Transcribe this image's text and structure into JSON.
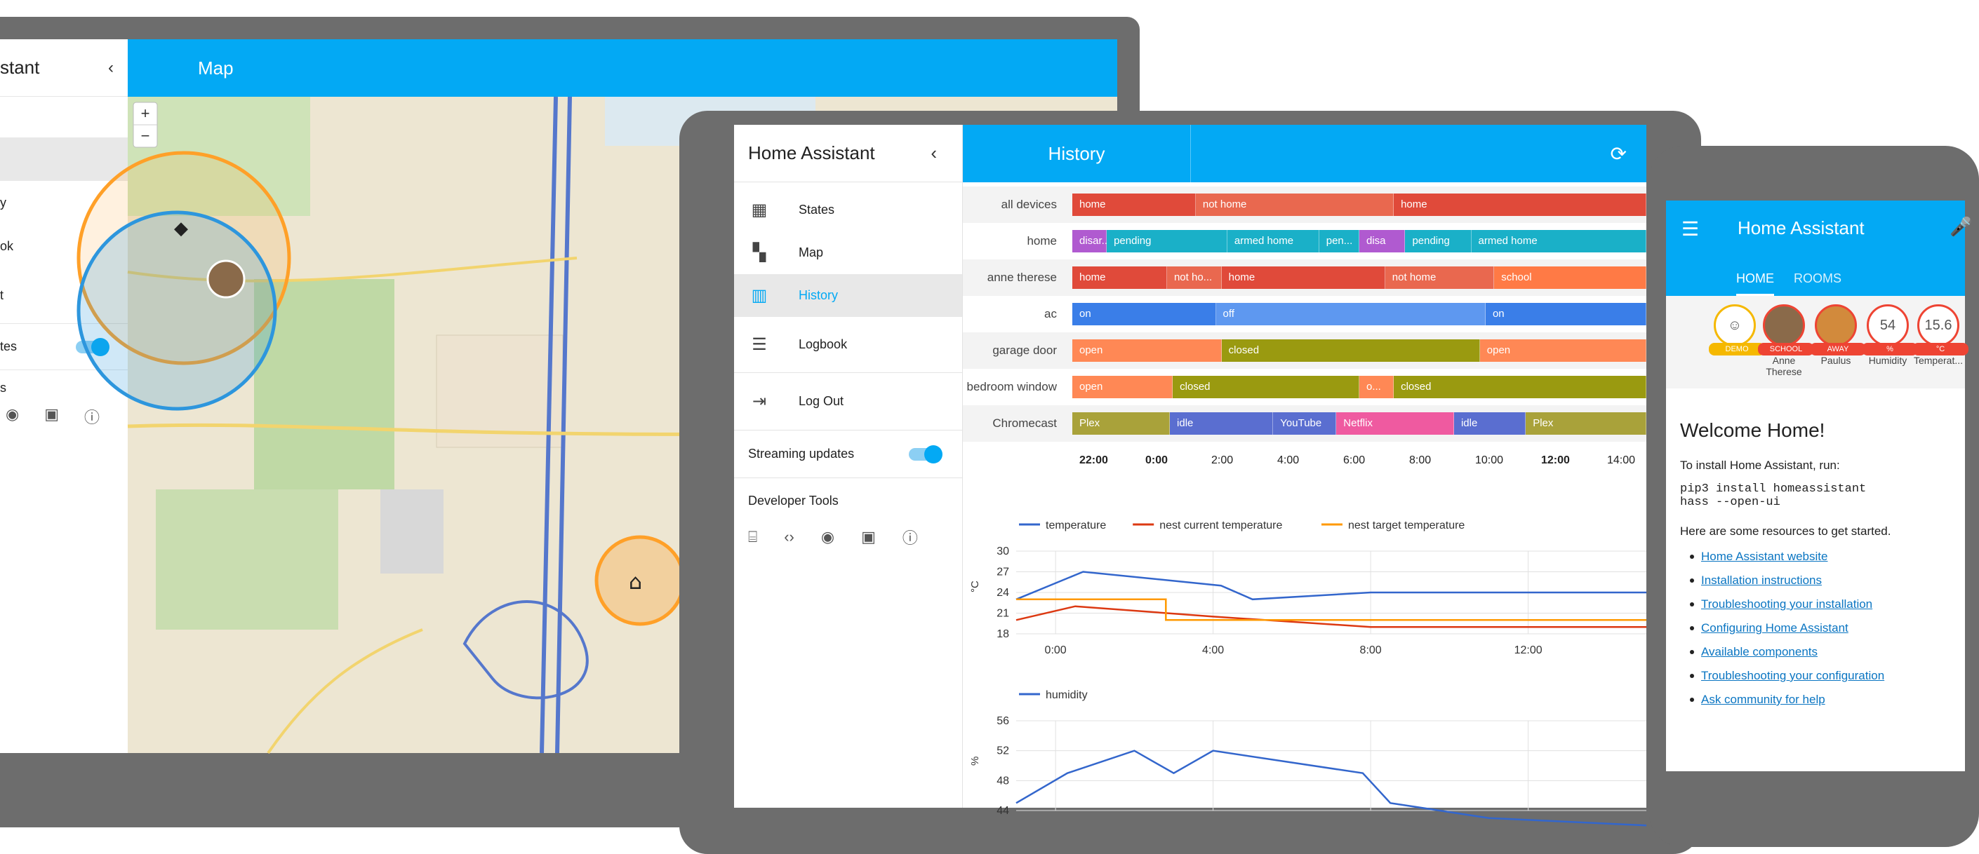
{
  "laptop": {
    "sidebar": {
      "title": "stant",
      "items": [
        {
          "label": "y"
        },
        {
          "label": "ok"
        },
        {
          "label": "t"
        }
      ],
      "streaming_label": "tes",
      "dev_label": "s"
    },
    "topbar_title": "Map",
    "zoom_in": "+",
    "zoom_out": "−"
  },
  "tablet": {
    "sidebar": {
      "title": "Home Assistant",
      "items": [
        {
          "label": "States",
          "icon": "grid-icon"
        },
        {
          "label": "Map",
          "icon": "map-pin-icon"
        },
        {
          "label": "History",
          "icon": "bar-chart-icon",
          "selected": true
        },
        {
          "label": "Logbook",
          "icon": "list-icon"
        },
        {
          "label": "Log Out",
          "icon": "exit-icon"
        }
      ],
      "streaming_label": "Streaming updates",
      "dev_tools_label": "Developer Tools",
      "dev_tools": [
        "remote-icon",
        "code-icon",
        "broadcast-icon",
        "file-code-icon",
        "info-icon"
      ]
    },
    "topbar_title": "History",
    "history": {
      "rows": [
        {
          "label": "all devices",
          "segments": [
            {
              "text": "home",
              "start": 0,
              "end": 0.215,
              "color": "#e04a3a"
            },
            {
              "text": "not home",
              "start": 0.215,
              "end": 0.56,
              "color": "#e9684f"
            },
            {
              "text": "home",
              "start": 0.56,
              "end": 1,
              "color": "#e04a3a"
            }
          ]
        },
        {
          "label": "home",
          "segments": [
            {
              "text": "disar...",
              "start": 0,
              "end": 0.06,
              "color": "#b05ad0"
            },
            {
              "text": "pending",
              "start": 0,
              "end": 0.27,
              "color": "#1ab0c8",
              "offset": 0.06
            },
            {
              "text": "armed home",
              "start": 0.27,
              "end": 0.43,
              "color": "#1ab0c8"
            },
            {
              "text": "pen...",
              "start": 0.43,
              "end": 0.5,
              "color": "#1ab0c8"
            },
            {
              "text": "disa",
              "start": 0.5,
              "end": 0.58,
              "color": "#b05ad0"
            },
            {
              "text": "pending",
              "start": 0.58,
              "end": 0.695,
              "color": "#1ab0c8"
            },
            {
              "text": "armed home",
              "start": 0.695,
              "end": 1,
              "color": "#1ab0c8"
            }
          ]
        },
        {
          "label": "anne therese",
          "segments": [
            {
              "text": "home",
              "start": 0,
              "end": 0.165,
              "color": "#e04a3a"
            },
            {
              "text": "not ho...",
              "start": 0.165,
              "end": 0.26,
              "color": "#e9684f"
            },
            {
              "text": "home",
              "start": 0.26,
              "end": 0.545,
              "color": "#e04a3a"
            },
            {
              "text": "not home",
              "start": 0.545,
              "end": 0.735,
              "color": "#e9684f"
            },
            {
              "text": "school",
              "start": 0.735,
              "end": 1,
              "color": "#ff7a45"
            }
          ]
        },
        {
          "label": "ac",
          "segments": [
            {
              "text": "on",
              "start": 0,
              "end": 0.25,
              "color": "#3a7ee8"
            },
            {
              "text": "off",
              "start": 0.25,
              "end": 0.72,
              "color": "#5e98f0"
            },
            {
              "text": "on",
              "start": 0.72,
              "end": 1,
              "color": "#3a7ee8"
            }
          ]
        },
        {
          "label": "garage door",
          "segments": [
            {
              "text": "open",
              "start": 0,
              "end": 0.26,
              "color": "#ff8855"
            },
            {
              "text": "closed",
              "start": 0.26,
              "end": 0.71,
              "color": "#9a9a10"
            },
            {
              "text": "open",
              "start": 0.71,
              "end": 1,
              "color": "#ff8855"
            }
          ]
        },
        {
          "label": "bedroom window",
          "segments": [
            {
              "text": "open",
              "start": 0,
              "end": 0.175,
              "color": "#ff8855"
            },
            {
              "text": "closed",
              "start": 0.175,
              "end": 0.5,
              "color": "#9a9a10"
            },
            {
              "text": "o...",
              "start": 0.5,
              "end": 0.56,
              "color": "#ff8855"
            },
            {
              "text": "closed",
              "start": 0.56,
              "end": 1,
              "color": "#9a9a10"
            }
          ]
        },
        {
          "label": "Chromecast",
          "segments": [
            {
              "text": "Plex",
              "start": 0,
              "end": 0.17,
              "color": "#a9a23a"
            },
            {
              "text": "idle",
              "start": 0.17,
              "end": 0.35,
              "color": "#5a6ed0"
            },
            {
              "text": "YouTube",
              "start": 0.35,
              "end": 0.46,
              "color": "#5a6ed0"
            },
            {
              "text": "Netflix",
              "start": 0.46,
              "end": 0.665,
              "color": "#ef5aa0"
            },
            {
              "text": "idle",
              "start": 0.665,
              "end": 0.79,
              "color": "#5a6ed0"
            },
            {
              "text": "Plex",
              "start": 0.79,
              "end": 1,
              "color": "#a9a23a"
            }
          ]
        }
      ],
      "time_ticks": [
        {
          "text": "22:00",
          "bold": true
        },
        {
          "text": "0:00",
          "bold": true
        },
        {
          "text": "2:00",
          "bold": false
        },
        {
          "text": "4:00",
          "bold": false
        },
        {
          "text": "6:00",
          "bold": false
        },
        {
          "text": "8:00",
          "bold": false
        },
        {
          "text": "10:00",
          "bold": false
        },
        {
          "text": "12:00",
          "bold": true
        },
        {
          "text": "14:00",
          "bold": false
        }
      ]
    },
    "chart_data": [
      {
        "type": "line",
        "ylabel": "°C",
        "ylim": [
          18,
          30
        ],
        "yticks": [
          18,
          21,
          24,
          27,
          30
        ],
        "xticks": [
          "0:00",
          "4:00",
          "8:00",
          "12:00"
        ],
        "xlim": [
          -1,
          15
        ],
        "series": [
          {
            "name": "temperature",
            "color": "#3366cc",
            "x": [
              -1,
              0.7,
              4.2,
              5,
              8,
              15
            ],
            "y": [
              23,
              27,
              25,
              23,
              24,
              24
            ]
          },
          {
            "name": "nest current temperature",
            "color": "#dc3912",
            "x": [
              -1,
              0.5,
              4,
              8,
              12,
              15
            ],
            "y": [
              20,
              22,
              20.5,
              19,
              19,
              19
            ]
          },
          {
            "name": "nest target temperature",
            "color": "#ff9900",
            "x": [
              -1,
              2.8,
              2.8,
              15
            ],
            "y": [
              23,
              23,
              20,
              20
            ]
          }
        ],
        "legend": "top-left",
        "grid": true
      },
      {
        "type": "line",
        "ylabel": "%",
        "ylim": [
          44,
          56
        ],
        "yticks": [
          44,
          48,
          52,
          56
        ],
        "xlim": [
          -1,
          15
        ],
        "series": [
          {
            "name": "humidity",
            "color": "#3366cc",
            "x": [
              -1,
              0.3,
              2,
              3,
              4,
              7.8,
              8.5,
              11,
              15
            ],
            "y": [
              45,
              49,
              52,
              49,
              52,
              49,
              45,
              43,
              42
            ]
          }
        ],
        "legend": "top-left",
        "grid": true
      }
    ]
  },
  "phone": {
    "title": "Home Assistant",
    "tabs": [
      "HOME",
      "ROOMS"
    ],
    "badges": [
      {
        "value": "☺",
        "tag": "DEMO",
        "name": "",
        "tag_color": "#f5b800"
      },
      {
        "value": "",
        "tag": "SCHOOL",
        "name": "Anne Therese",
        "tag_color": "#ee4433",
        "avatar": true
      },
      {
        "value": "",
        "tag": "AWAY",
        "name": "Paulus",
        "tag_color": "#ee4433",
        "avatar": true
      },
      {
        "value": "54",
        "tag": "%",
        "name": "Humidity",
        "tag_color": "#ee4433"
      },
      {
        "value": "15.6",
        "tag": "°C",
        "name": "Temperat...",
        "tag_color": "#ee4433"
      }
    ],
    "card": {
      "heading": "Welcome Home!",
      "install_text": "To install Home Assistant, run:",
      "cmd1": "pip3 install homeassistant",
      "cmd2": "hass --open-ui",
      "resources_text": "Here are some resources to get started.",
      "links": [
        "Home Assistant website",
        "Installation instructions",
        "Troubleshooting your installation",
        "Configuring Home Assistant",
        "Available components",
        "Troubleshooting your configuration",
        "Ask community for help"
      ]
    }
  }
}
